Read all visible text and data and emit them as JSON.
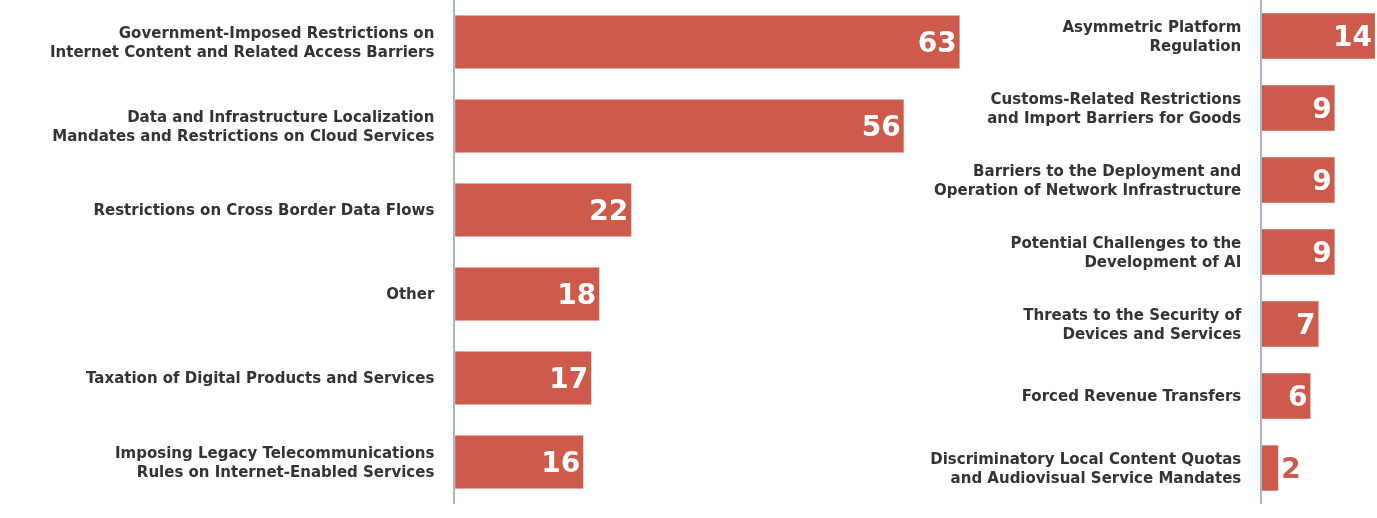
{
  "chart_data": [
    {
      "type": "bar",
      "orientation": "horizontal",
      "categories": [
        "Government-Imposed Restrictions on\nInternet Content and Related Access Barriers",
        "Data and Infrastructure Localization\nMandates and Restrictions on Cloud Services",
        "Restrictions on Cross Border Data Flows",
        "Other",
        "Taxation of Digital Products and Services",
        "Imposing Legacy Telecommunications\nRules on Internet-Enabled Services"
      ],
      "values": [
        63,
        56,
        22,
        18,
        17,
        16
      ],
      "color": "#cd5a4a",
      "data_labels": true,
      "xlim": [
        0,
        63
      ],
      "tick_labels": "y"
    },
    {
      "type": "bar",
      "orientation": "horizontal",
      "categories": [
        "Asymmetric Platform\nRegulation",
        "Customs-Related Restrictions\nand Import Barriers for Goods",
        "Barriers to the Deployment and\nOperation of Network Infrastructure",
        "Potential Challenges to the\nDevelopment of AI",
        "Threats to the Security of\nDevices and Services",
        "Forced Revenue Transfers",
        "Discriminatory Local Content Quotas\nand Audiovisual Service Mandates"
      ],
      "values": [
        14,
        9,
        9,
        9,
        7,
        6,
        2
      ],
      "color": "#cd5a4a",
      "data_labels": true,
      "xlim": [
        0,
        14
      ],
      "tick_labels": "y"
    }
  ]
}
